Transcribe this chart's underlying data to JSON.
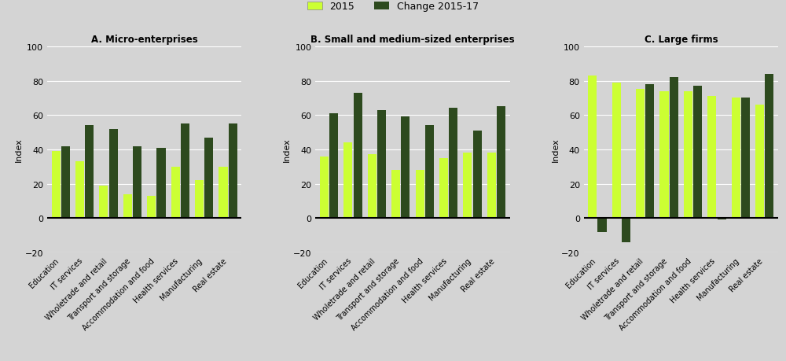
{
  "categories": [
    "Education",
    "IT services",
    "Wholetrade and retail",
    "Transport and storage",
    "Accommodation and food",
    "Health services",
    "Manufacturing",
    "Real estate"
  ],
  "panels": [
    {
      "title": "A. Micro-enterprises",
      "base_2015": [
        39,
        33,
        19,
        14,
        13,
        30,
        22,
        30
      ],
      "total_2017": [
        42,
        54,
        52,
        42,
        41,
        55,
        47,
        55
      ]
    },
    {
      "title": "B. Small and medium-sized enterprises",
      "base_2015": [
        36,
        44,
        37,
        28,
        28,
        35,
        38,
        38
      ],
      "total_2017": [
        61,
        73,
        63,
        59,
        54,
        64,
        51,
        65
      ]
    },
    {
      "title": "C. Large firms",
      "base_2015": [
        83,
        79,
        75,
        74,
        74,
        71,
        70,
        66
      ],
      "total_2017": [
        -8,
        -14,
        78,
        82,
        77,
        -1,
        70,
        84
      ]
    }
  ],
  "color_2015": "#ccff33",
  "color_change": "#2d4a1e",
  "ylim": [
    -20,
    100
  ],
  "yticks": [
    -20,
    0,
    20,
    40,
    60,
    80,
    100
  ],
  "ylabel": "Index",
  "background_color": "#d4d4d4",
  "legend_label_2015": "2015",
  "legend_label_change": "Change 2015-17"
}
